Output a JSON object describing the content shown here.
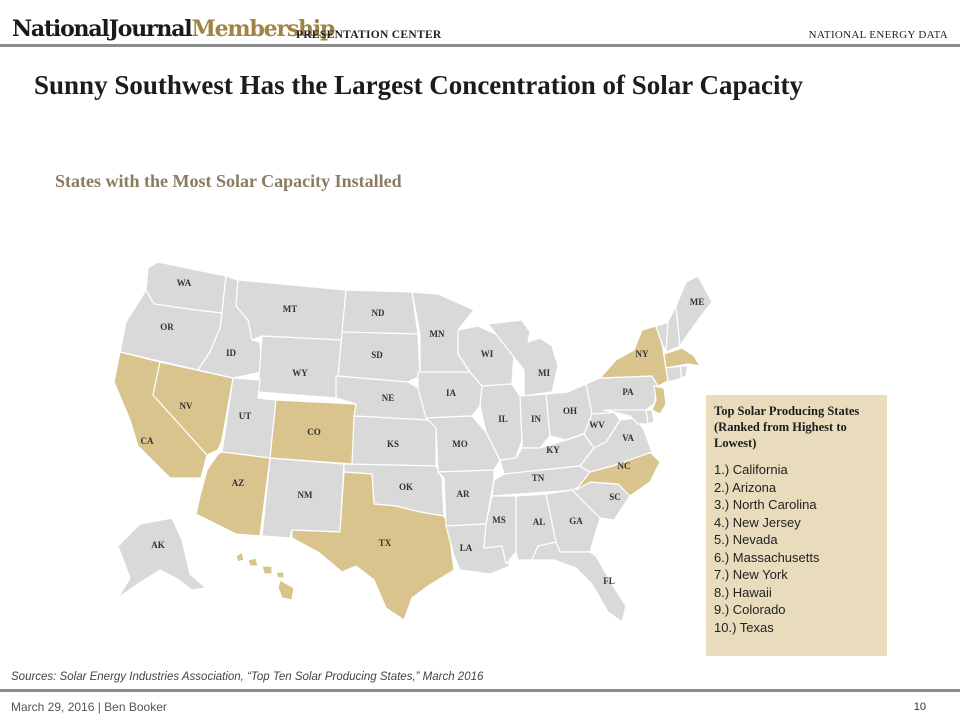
{
  "header": {
    "logo_part1": "NationalJournal",
    "logo_part2": "Membership",
    "center_label": "PRESENTATION CENTER",
    "section_label": "NATIONAL ENERGY DATA"
  },
  "title": "Sunny Southwest Has the Largest Concentration of Solar Capacity",
  "subtitle": "States with the Most Solar Capacity Installed",
  "map": {
    "highlight_color": "#d8c48c",
    "base_color": "#d9d9d9",
    "highlighted_states": [
      "CA",
      "AZ",
      "NC",
      "NJ",
      "NV",
      "MA",
      "NY",
      "HI",
      "CO",
      "TX"
    ],
    "state_labels": {
      "WA": "WA",
      "OR": "OR",
      "CA": "CA",
      "ID": "ID",
      "NV": "NV",
      "MT": "MT",
      "WY": "WY",
      "UT": "UT",
      "AZ": "AZ",
      "CO": "CO",
      "NM": "NM",
      "ND": "ND",
      "SD": "SD",
      "NE": "NE",
      "KS": "KS",
      "OK": "OK",
      "TX": "TX",
      "MN": "MN",
      "IA": "IA",
      "MO": "MO",
      "AR": "AR",
      "LA": "LA",
      "WI": "WI",
      "IL": "IL",
      "MI": "MI",
      "IN": "IN",
      "OH": "OH",
      "KY": "KY",
      "TN": "TN",
      "MS": "MS",
      "AL": "AL",
      "GA": "GA",
      "FL": "FL",
      "SC": "SC",
      "NC": "NC",
      "VA": "VA",
      "WV": "WV",
      "PA": "PA",
      "NY": "NY",
      "ME": "ME",
      "AK": "AK"
    }
  },
  "callout": {
    "title": "Top Solar Producing States (Ranked from Highest to Lowest)",
    "rankings": [
      "1.) California",
      "2.) Arizona",
      "3.) North Carolina",
      "4.) New Jersey",
      "5.) Nevada",
      "6.) Massachusetts",
      "7.) New York",
      "8.) Hawaii",
      "9.) Colorado",
      "10.) Texas"
    ]
  },
  "sources": "Sources: Solar Energy Industries Association, “Top Ten Solar Producing States,” March 2016",
  "footer": {
    "date_author": "March 29, 2016  |  Ben Booker",
    "page_number": "10"
  }
}
